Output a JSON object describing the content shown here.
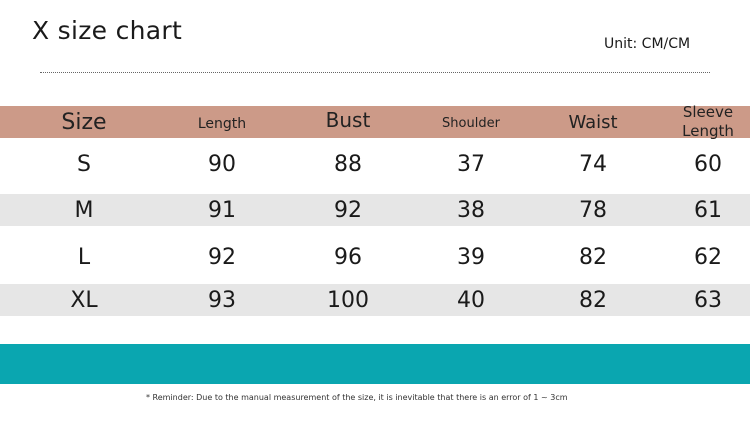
{
  "title": "X size chart",
  "unit": "Unit: CM/CM",
  "headers": {
    "size": "Size",
    "length": "Length",
    "bust": "Bust",
    "shoulder": "Shoulder",
    "waist": "Waist",
    "sleeve": "Sleeve Length"
  },
  "rows": [
    {
      "size": "S",
      "length": "90",
      "bust": "88",
      "shoulder": "37",
      "waist": "74",
      "sleeve": "60"
    },
    {
      "size": "M",
      "length": "91",
      "bust": "92",
      "shoulder": "38",
      "waist": "78",
      "sleeve": "61"
    },
    {
      "size": "L",
      "length": "92",
      "bust": "96",
      "shoulder": "39",
      "waist": "82",
      "sleeve": "62"
    },
    {
      "size": "XL",
      "length": "93",
      "bust": "100",
      "shoulder": "40",
      "waist": "82",
      "sleeve": "63"
    }
  ],
  "note": "* Reminder: Due to the manual measurement of the size, it is inevitable that there is an error of 1 ~ 3cm",
  "colors": {
    "header_bg": "#cc9a88",
    "shaded_row_bg": "#e6e6e6",
    "footer_band": "#0aa6b0"
  }
}
